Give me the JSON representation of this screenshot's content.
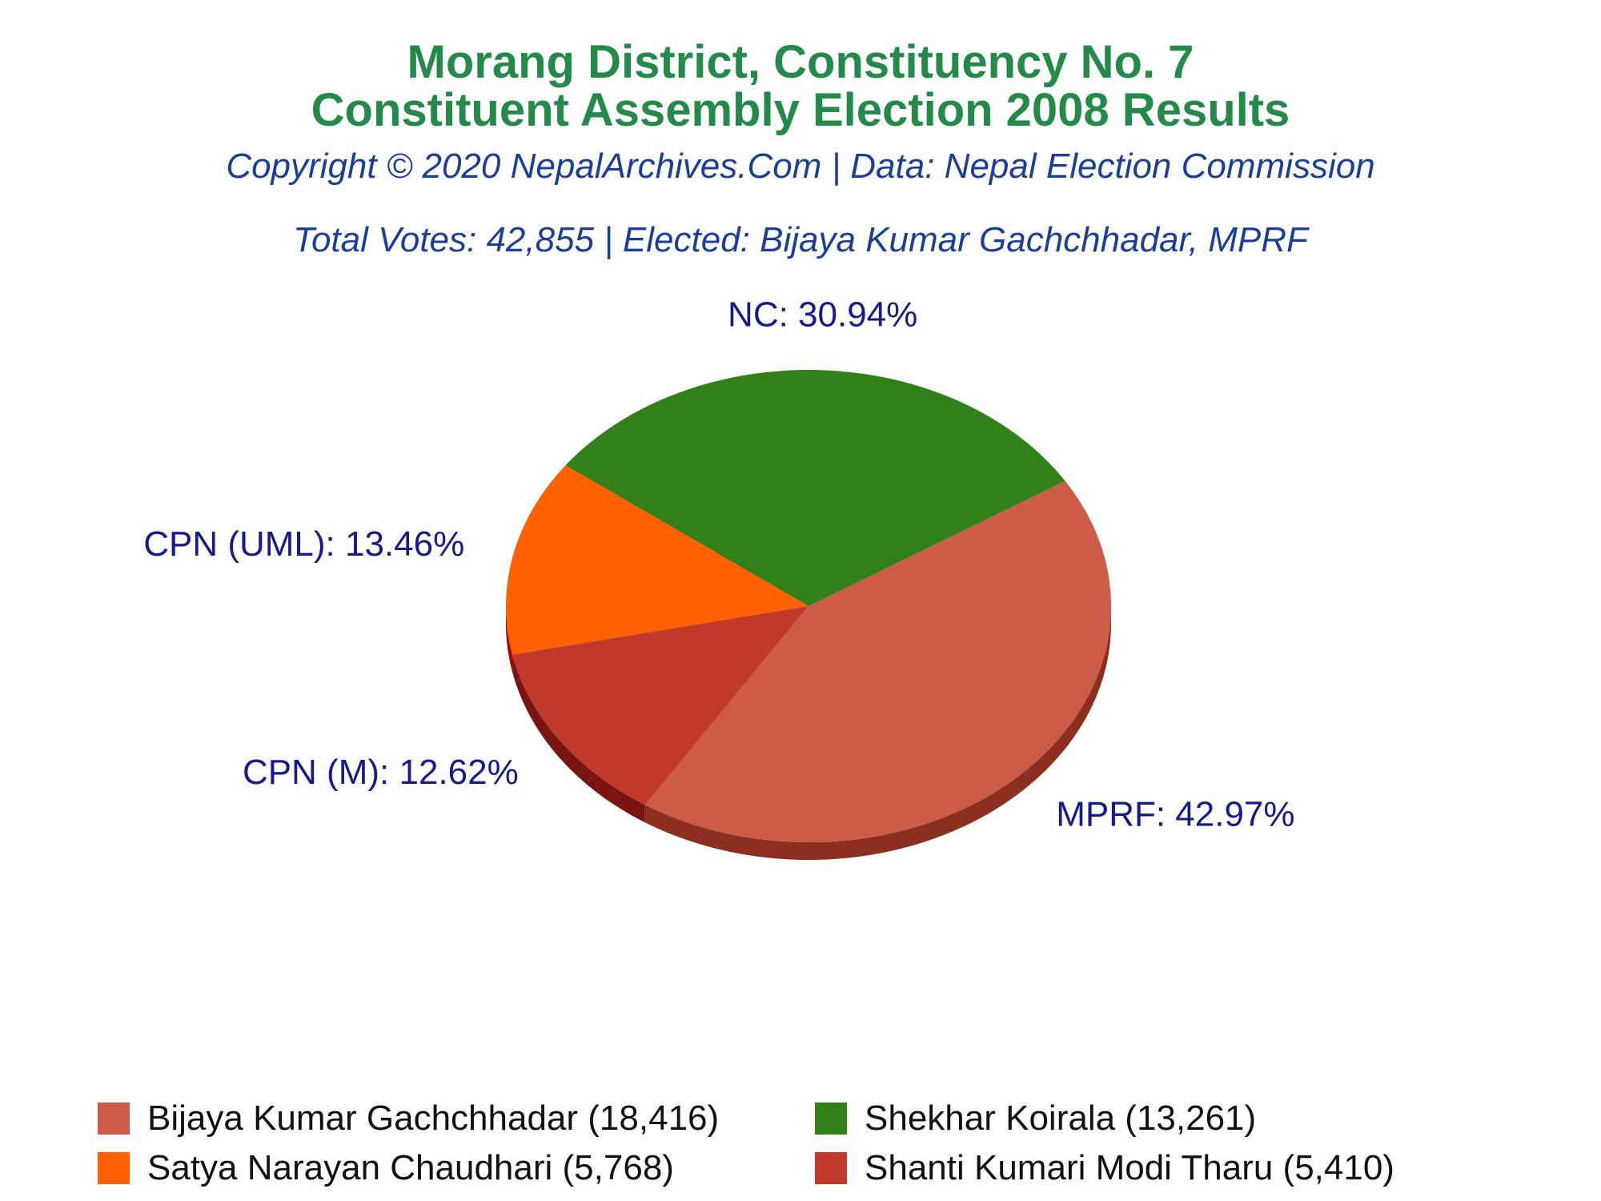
{
  "chart_data": {
    "type": "pie",
    "title": "Morang District, Constituency No. 7",
    "title_line2": "Constituent Assembly Election 2008 Results",
    "subtitle": "Copyright © 2020 NepalArchives.Com | Data: Nepal Election Commission",
    "info": "Total Votes: 42,855 | Elected: Bijaya Kumar Gachchhadar, MPRF",
    "slices": [
      {
        "party": "MPRF",
        "label": "MPRF: 42.97%",
        "percent": 42.97,
        "color": "#cc5b47",
        "side_color": "#8c2e20"
      },
      {
        "party": "CPN (M)",
        "label": "CPN (M): 12.62%",
        "percent": 12.62,
        "color": "#c0392b",
        "side_color": "#7a1410"
      },
      {
        "party": "CPN (UML)",
        "label": "CPN (UML): 13.46%",
        "percent": 13.46,
        "color": "#ff6000",
        "side_color": "#b00000"
      },
      {
        "party": "NC",
        "label": "NC: 30.94%",
        "percent": 30.94,
        "color": "#318018",
        "side_color": "#0a2a05"
      }
    ],
    "legend": [
      {
        "text": "Bijaya Kumar Gachchhadar (18,416)",
        "color": "#cc5b47",
        "votes": 18416
      },
      {
        "text": "Shekhar Koirala (13,261)",
        "color": "#318018",
        "votes": 13261
      },
      {
        "text": "Satya Narayan Chaudhari (5,768)",
        "color": "#ff6000",
        "votes": 5768
      },
      {
        "text": "Shanti Kumari Modi Tharu (5,410)",
        "color": "#c0392b",
        "votes": 5410
      }
    ],
    "legend_placement": "bottom"
  }
}
